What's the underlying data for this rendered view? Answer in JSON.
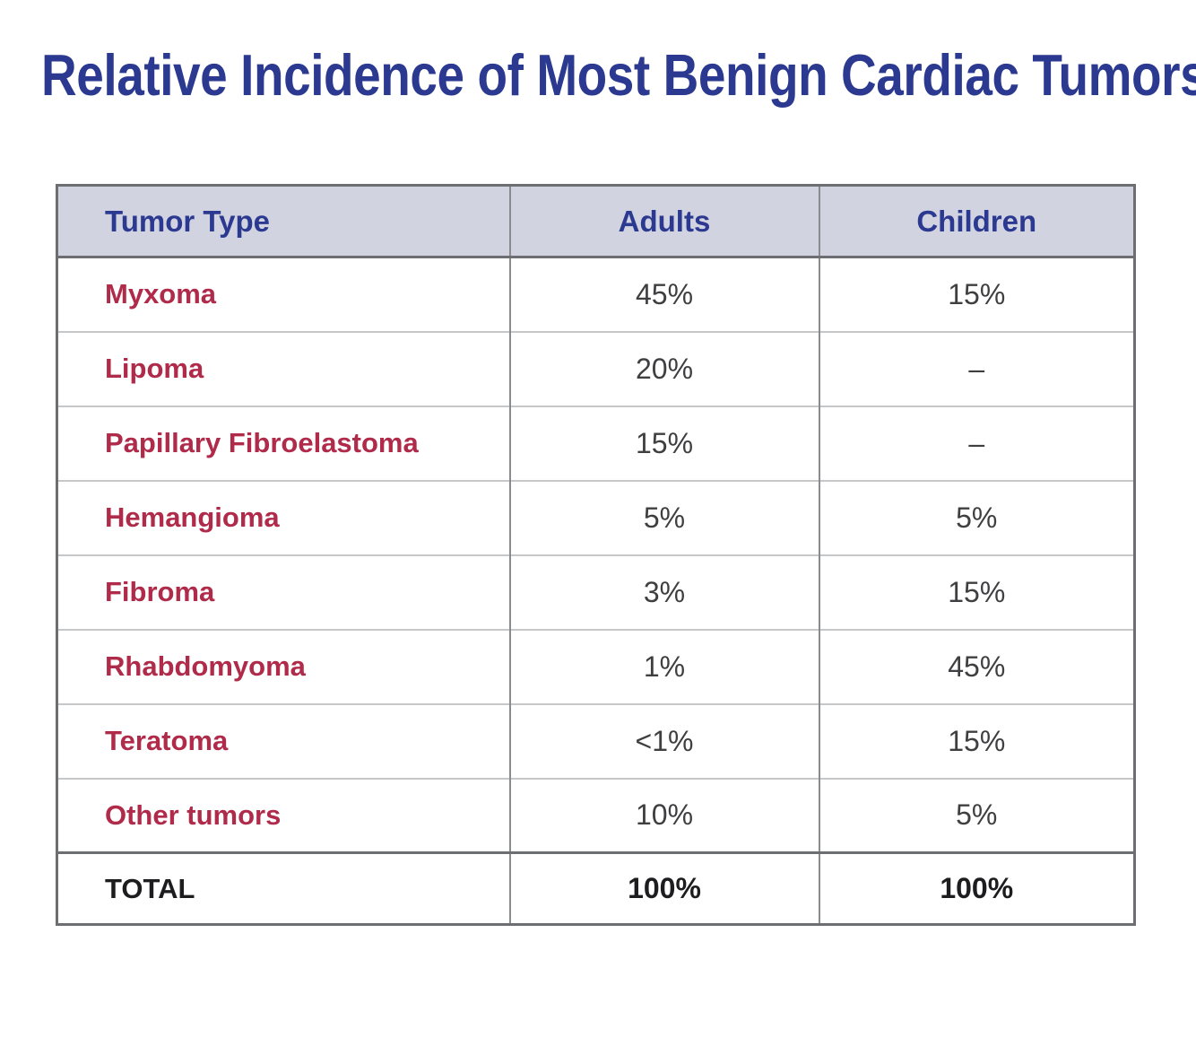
{
  "title": "Relative Incidence of Most Benign Cardiac Tumors",
  "colors": {
    "title_navy": "#2b3990",
    "header_text_navy": "#2b3990",
    "header_background": "#d2d3e1",
    "tumor_name_red": "#b02a4a",
    "value_gray": "#3f3f41",
    "total_black": "#1d1d1f",
    "outer_border_gray": "#6d6e71",
    "column_divider_gray": "#8a8b8e",
    "row_divider_gray": "#c6c7c9"
  },
  "table": {
    "columns": [
      "Tumor Type",
      "Adults",
      "Children"
    ],
    "rows": [
      {
        "tumor": "Myxoma",
        "adults": "45%",
        "children": "15%"
      },
      {
        "tumor": "Lipoma",
        "adults": "20%",
        "children": "–"
      },
      {
        "tumor": "Papillary Fibroelastoma",
        "adults": "15%",
        "children": "–"
      },
      {
        "tumor": "Hemangioma",
        "adults": "5%",
        "children": "5%"
      },
      {
        "tumor": "Fibroma",
        "adults": "3%",
        "children": "15%"
      },
      {
        "tumor": "Rhabdomyoma",
        "adults": "1%",
        "children": "45%"
      },
      {
        "tumor": "Teratoma",
        "adults": "<1%",
        "children": "15%"
      },
      {
        "tumor": "Other tumors",
        "adults": "10%",
        "children": "5%"
      }
    ],
    "total_row": {
      "label": "TOTAL",
      "adults": "100%",
      "children": "100%"
    }
  },
  "chart_data": {
    "type": "table",
    "title": "Relative Incidence of Most Benign Cardiac Tumors",
    "columns": [
      "Tumor Type",
      "Adults",
      "Children"
    ],
    "rows": [
      [
        "Myxoma",
        "45%",
        "15%"
      ],
      [
        "Lipoma",
        "20%",
        "–"
      ],
      [
        "Papillary Fibroelastoma",
        "15%",
        "–"
      ],
      [
        "Hemangioma",
        "5%",
        "5%"
      ],
      [
        "Fibroma",
        "3%",
        "15%"
      ],
      [
        "Rhabdomyoma",
        "1%",
        "45%"
      ],
      [
        "Teratoma",
        "<1%",
        "15%"
      ],
      [
        "Other tumors",
        "10%",
        "5%"
      ],
      [
        "TOTAL",
        "100%",
        "100%"
      ]
    ]
  }
}
